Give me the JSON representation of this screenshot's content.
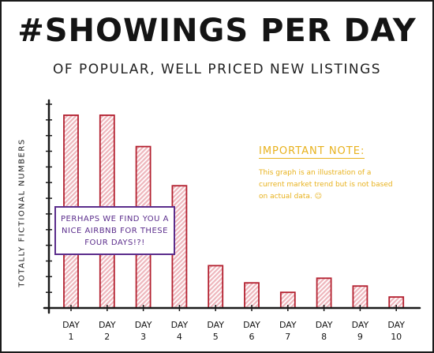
{
  "header": {
    "title": "#SHOWINGS PER DAY",
    "subtitle": "OF POPULAR, WELL PRICED NEW LISTINGS"
  },
  "note": {
    "title": "IMPORTANT NOTE:",
    "body": "This graph is an illustration of a current market trend but is not based on actual data. ☺"
  },
  "callout": {
    "text": "PERHAPS WE FIND YOU A NICE AIRBNB FOR THESE FOUR DAYS!?!"
  },
  "colors": {
    "bar_fill": "#eeb6bc",
    "bar_stroke": "#b3202f",
    "axis": "#1a1a1a",
    "note": "#e8b21e",
    "callout": "#5b2d8c"
  },
  "chart_data": {
    "type": "bar",
    "title": "#SHOWINGS PER DAY",
    "subtitle": "OF POPULAR, WELL PRICED NEW LISTINGS",
    "xlabel": "",
    "ylabel": "TOTALLY FICTIONAL NUMBERS",
    "categories": [
      [
        "DAY",
        "1"
      ],
      [
        "DAY",
        "2"
      ],
      [
        "DAY",
        "3"
      ],
      [
        "DAY",
        "4"
      ],
      [
        "DAY",
        "5"
      ],
      [
        "DAY",
        "6"
      ],
      [
        "DAY",
        "7"
      ],
      [
        "DAY",
        "8"
      ],
      [
        "DAY",
        "9"
      ],
      [
        "DAY",
        "10"
      ]
    ],
    "values": [
      12.3,
      12.3,
      10.3,
      7.8,
      2.7,
      1.6,
      1.0,
      1.9,
      1.4,
      0.7
    ],
    "ylim": [
      0,
      13
    ],
    "y_tick_count": 13,
    "tick_labels_shown": false,
    "grid": false,
    "legend": "none"
  }
}
